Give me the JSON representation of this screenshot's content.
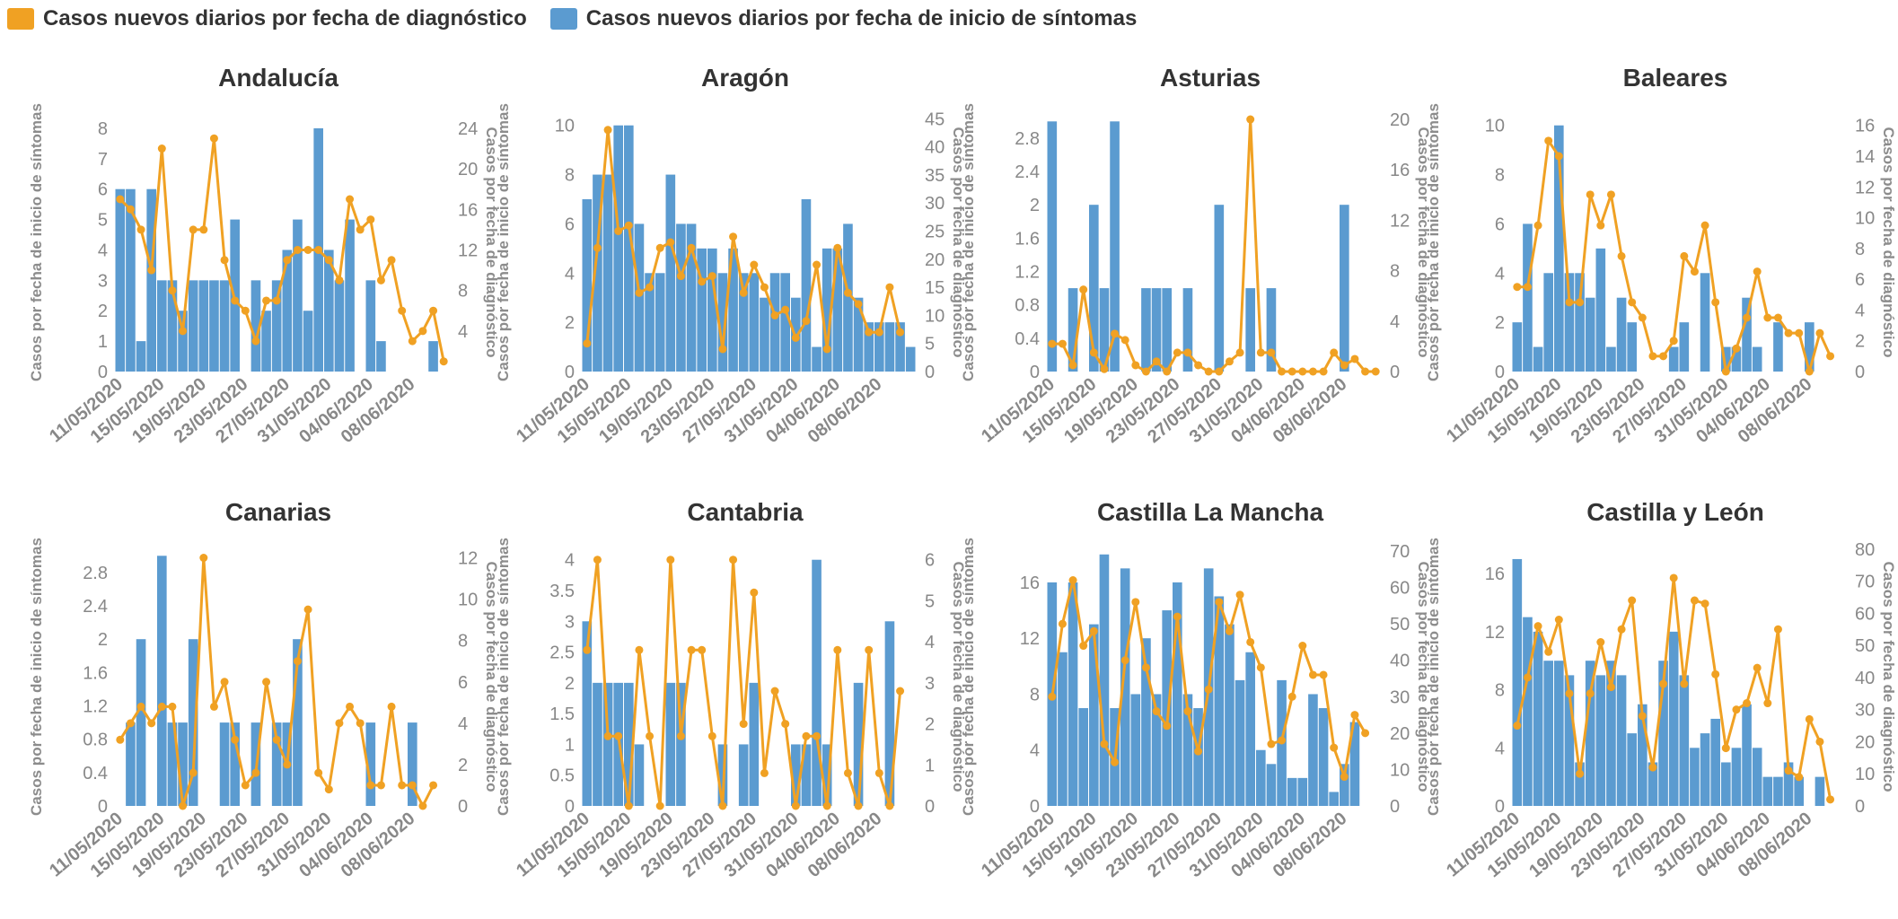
{
  "legend": {
    "diag_label": "Casos nuevos diarios por fecha de diagnóstico",
    "sintomas_label": "Casos nuevos diarios por fecha de inicio de síntomas"
  },
  "colors": {
    "bar": "#5b9bd0",
    "line": "#f0a123",
    "text": "#333333",
    "tick": "#888888"
  },
  "chart_data": [
    {
      "type": "bar+line",
      "title": "Andalucía",
      "ylabel_left": "Casos por fecha de inicio de síntomas",
      "ylabel_right": "Casos por fecha de diagnóstico",
      "x_tick_labels": [
        "11/05/2020",
        "15/05/2020",
        "19/05/2020",
        "23/05/2020",
        "27/05/2020",
        "31/05/2020",
        "04/06/2020",
        "08/06/2020"
      ],
      "ylim_left": [
        0,
        8.5
      ],
      "yticks_left": [
        0,
        1,
        2,
        3,
        4,
        5,
        6,
        7,
        8
      ],
      "ylim_right": [
        0,
        25.5
      ],
      "yticks_right": [
        4,
        8,
        12,
        16,
        20,
        24
      ],
      "bars": [
        6,
        6,
        1,
        6,
        3,
        3,
        2,
        3,
        3,
        3,
        3,
        5,
        0,
        3,
        2,
        3,
        4,
        5,
        2,
        8,
        4,
        3,
        5,
        0,
        3,
        1,
        0,
        0,
        0,
        0,
        1,
        0
      ],
      "line": [
        17,
        16,
        14,
        10,
        22,
        8,
        4,
        14,
        14,
        23,
        11,
        7,
        6,
        3,
        7,
        7,
        11,
        12,
        12,
        12,
        11,
        9,
        17,
        14,
        15,
        9,
        11,
        6,
        3,
        4,
        6,
        1
      ]
    },
    {
      "type": "bar+line",
      "title": "Aragón",
      "ylabel_left": "Casos por fecha de inicio de síntomas",
      "ylabel_right": "Casos por fecha de diagnóstico",
      "x_tick_labels": [
        "11/05/2020",
        "15/05/2020",
        "19/05/2020",
        "23/05/2020",
        "27/05/2020",
        "31/05/2020",
        "04/06/2020",
        "08/06/2020"
      ],
      "ylim_left": [
        0,
        10.5
      ],
      "yticks_left": [
        0,
        2,
        4,
        6,
        8,
        10
      ],
      "ylim_right": [
        0,
        46
      ],
      "yticks_right": [
        0,
        5,
        10,
        15,
        20,
        25,
        30,
        35,
        40,
        45
      ],
      "bars": [
        7,
        8,
        8,
        10,
        10,
        6,
        4,
        4,
        8,
        6,
        6,
        5,
        5,
        4,
        5,
        4,
        4,
        3,
        4,
        4,
        3,
        7,
        1,
        5,
        5,
        6,
        3,
        2,
        2,
        2,
        2,
        1
      ],
      "line": [
        5,
        22,
        43,
        25,
        26,
        14,
        15,
        22,
        23,
        17,
        22,
        16,
        17,
        4,
        24,
        14,
        19,
        15,
        10,
        11,
        6,
        9,
        19,
        4,
        22,
        14,
        12,
        7,
        7,
        15,
        7
      ]
    },
    {
      "type": "bar+line",
      "title": "Asturias",
      "ylabel_left": "Casos por fecha de inicio de síntomas",
      "ylabel_right": "Casos por fecha de diagnóstico",
      "x_tick_labels": [
        "11/05/2020",
        "15/05/2020",
        "19/05/2020",
        "23/05/2020",
        "27/05/2020",
        "31/05/2020",
        "04/06/2020",
        "08/06/2020"
      ],
      "ylim_left": [
        0,
        3.1
      ],
      "yticks_left": [
        0,
        0.4,
        0.8,
        1.2,
        1.6,
        2,
        2.4,
        2.8
      ],
      "ylim_right": [
        0,
        20.5
      ],
      "yticks_right": [
        0,
        4,
        8,
        12,
        16,
        20
      ],
      "bars": [
        3,
        0,
        1,
        0,
        2,
        1,
        3,
        0,
        0,
        1,
        1,
        1,
        0,
        1,
        0,
        0,
        2,
        0,
        0,
        1,
        0,
        1,
        0,
        0,
        0,
        0,
        0,
        0,
        2,
        0,
        0,
        0
      ],
      "line": [
        2.2,
        2.2,
        0.5,
        6.5,
        1.5,
        0.2,
        3,
        2.5,
        0.5,
        0,
        0.8,
        0,
        1.5,
        1.5,
        0.5,
        0,
        0,
        0.8,
        1.5,
        20,
        1.5,
        1.5,
        0,
        0,
        0,
        0,
        0,
        1.5,
        0.5,
        1,
        0,
        0
      ]
    },
    {
      "type": "bar+line",
      "title": "Baleares",
      "ylabel_left": "Casos por fecha de inicio de síntomas",
      "ylabel_right": "Casos por fecha de diagnóstico",
      "x_tick_labels": [
        "11/05/2020",
        "15/05/2020",
        "19/05/2020",
        "23/05/2020",
        "27/05/2020",
        "31/05/2020",
        "04/06/2020",
        "08/06/2020"
      ],
      "ylim_left": [
        0,
        10.5
      ],
      "yticks_left": [
        0,
        2,
        4,
        6,
        8,
        10
      ],
      "ylim_right": [
        0,
        16.8
      ],
      "yticks_right": [
        0,
        2,
        4,
        6,
        8,
        10,
        12,
        14,
        16
      ],
      "bars": [
        2,
        6,
        1,
        4,
        10,
        4,
        4,
        3,
        5,
        1,
        3,
        2,
        0,
        0,
        0,
        1,
        2,
        0,
        4,
        0,
        1,
        1,
        3,
        1,
        0,
        2,
        0,
        0,
        2,
        0,
        0,
        0
      ],
      "line": [
        5.5,
        5.5,
        9.5,
        15,
        14,
        4.5,
        4.5,
        11.5,
        9.5,
        11.5,
        7.5,
        4.5,
        3.5,
        1,
        1,
        2,
        7.5,
        6.5,
        9.5,
        4.5,
        0,
        1.5,
        3.5,
        6.5,
        3.5,
        3.5,
        2.5,
        2.5,
        0,
        2.5,
        1
      ]
    },
    {
      "type": "bar+line",
      "title": "Canarias",
      "ylabel_left": "Casos por fecha de inicio de síntomas",
      "ylabel_right": "Casos por fecha de diagnóstico",
      "x_tick_labels": [
        "11/05/2020",
        "15/05/2020",
        "19/05/2020",
        "23/05/2020",
        "27/05/2020",
        "31/05/2020",
        "04/06/2020",
        "08/06/2020"
      ],
      "ylim_left": [
        0,
        3.1
      ],
      "yticks_left": [
        0,
        0.4,
        0.8,
        1.2,
        1.6,
        2,
        2.4,
        2.8
      ],
      "ylim_right": [
        0,
        12.5
      ],
      "yticks_right": [
        0,
        2,
        4,
        6,
        8,
        10,
        12
      ],
      "bars": [
        0,
        1,
        2,
        0,
        3,
        1,
        1,
        2,
        0,
        0,
        1,
        1,
        0,
        1,
        0,
        1,
        1,
        2,
        0,
        0,
        0,
        0,
        0,
        0,
        1,
        0,
        0,
        0,
        1,
        0,
        0,
        0
      ],
      "line": [
        3.2,
        4,
        4.8,
        4,
        4.8,
        4.8,
        0,
        1.6,
        12,
        4.8,
        6,
        3.2,
        1,
        1.6,
        6,
        3.2,
        2,
        7,
        9.5,
        1.6,
        0.8,
        4,
        4.8,
        4,
        1,
        1,
        4.8,
        1,
        1,
        0,
        1
      ]
    },
    {
      "type": "bar+line",
      "title": "Cantabria",
      "ylabel_left": "Casos por fecha de inicio de síntomas",
      "ylabel_right": "Casos por fecha de diagnóstico",
      "x_tick_labels": [
        "11/05/2020",
        "15/05/2020",
        "19/05/2020",
        "23/05/2020",
        "27/05/2020",
        "31/05/2020",
        "04/06/2020",
        "08/06/2020"
      ],
      "ylim_left": [
        0,
        4.2
      ],
      "yticks_left": [
        0,
        0.5,
        1,
        1.5,
        2,
        2.5,
        3,
        3.5,
        4
      ],
      "ylim_right": [
        0,
        6.3
      ],
      "yticks_right": [
        0,
        1,
        2,
        3,
        4,
        5,
        6
      ],
      "bars": [
        3,
        2,
        2,
        2,
        2,
        1,
        0,
        0,
        2,
        2,
        0,
        0,
        0,
        1,
        0,
        1,
        2,
        0,
        0,
        0,
        1,
        1,
        4,
        1,
        0,
        0,
        2,
        0,
        0,
        3,
        0,
        0
      ],
      "line": [
        3.8,
        6,
        1.7,
        1.7,
        0,
        3.8,
        1.7,
        0,
        6,
        1.7,
        3.8,
        3.8,
        1.7,
        0,
        6,
        2,
        5.2,
        0.8,
        2.8,
        2,
        0,
        1.7,
        1.7,
        0,
        3.8,
        0.8,
        0,
        3.8,
        0.8,
        0,
        2.8
      ]
    },
    {
      "type": "bar+line",
      "title": "Castilla La Mancha",
      "ylabel_left": "Casos por fecha de inicio de síntomas",
      "ylabel_right": "Casos por fecha de diagnóstico",
      "x_tick_labels": [
        "11/05/2020",
        "15/05/2020",
        "19/05/2020",
        "23/05/2020",
        "27/05/2020",
        "31/05/2020",
        "04/06/2020",
        "08/06/2020"
      ],
      "ylim_left": [
        0,
        18.5
      ],
      "yticks_left": [
        0,
        4,
        8,
        12,
        16
      ],
      "ylim_right": [
        0,
        71
      ],
      "yticks_right": [
        0,
        10,
        20,
        30,
        40,
        50,
        60,
        70
      ],
      "bars": [
        16,
        11,
        16,
        7,
        13,
        18,
        7,
        17,
        8,
        12,
        8,
        14,
        16,
        8,
        7,
        17,
        15,
        13,
        9,
        11,
        4,
        3,
        9,
        2,
        2,
        8,
        7,
        1,
        3,
        6,
        0,
        0
      ],
      "line": [
        30,
        50,
        62,
        44,
        48,
        17,
        12,
        40,
        56,
        38,
        26,
        22,
        52,
        26,
        15,
        32,
        56,
        48,
        58,
        45,
        38,
        17,
        18,
        30,
        44,
        36,
        36,
        16,
        8,
        25,
        20
      ]
    },
    {
      "type": "bar+line",
      "title": "Castilla y León",
      "ylabel_left": "Casos por fecha de inicio de síntomas",
      "ylabel_right": "Casos por fecha de diagnóstico",
      "x_tick_labels": [
        "11/05/2020",
        "15/05/2020",
        "19/05/2020",
        "23/05/2020",
        "27/05/2020",
        "31/05/2020",
        "04/06/2020",
        "08/06/2020"
      ],
      "ylim_left": [
        0,
        17.8
      ],
      "yticks_left": [
        0,
        4,
        8,
        12,
        16
      ],
      "ylim_right": [
        0,
        80.5
      ],
      "yticks_right": [
        0,
        10,
        20,
        30,
        40,
        50,
        60,
        70,
        80
      ],
      "bars": [
        17,
        13,
        12,
        10,
        10,
        9,
        3,
        10,
        9,
        10,
        9,
        5,
        7,
        3,
        10,
        12,
        9,
        4,
        5,
        6,
        3,
        4,
        7,
        4,
        2,
        2,
        3,
        2,
        0,
        2,
        0,
        0
      ],
      "line": [
        25,
        40,
        56,
        48,
        58,
        35,
        10,
        35,
        51,
        37,
        55,
        64,
        28,
        12,
        38,
        71,
        38,
        64,
        63,
        41,
        18,
        30,
        32,
        43,
        32,
        55,
        11,
        9,
        27,
        20,
        2
      ]
    }
  ]
}
